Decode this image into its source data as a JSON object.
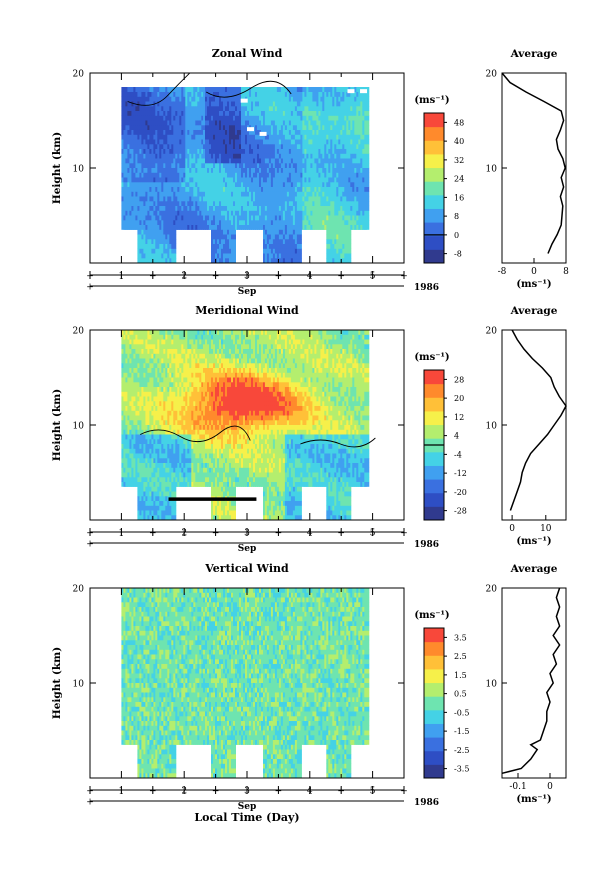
{
  "figure": {
    "colorbar_unit": "(ms⁻¹)",
    "average_title": "Average",
    "xaxis_month": "Sep",
    "xaxis_year": "1986",
    "xaxis_title": "Local Time (Day)"
  },
  "chart_data": [
    {
      "type": "heatmap",
      "title": "Zonal Wind",
      "ylabel": "Height (km)",
      "xlabel": "Local Time (Day)",
      "xlim": [
        0.5,
        5.5
      ],
      "ylim": [
        0,
        20
      ],
      "x_ticks": [
        "1",
        "2",
        "3",
        "4",
        "5"
      ],
      "y_ticks": [
        10,
        20
      ],
      "colorbar": {
        "unit": "(ms⁻¹)",
        "levels": [
          "-8",
          "0",
          "8",
          "16",
          "24",
          "32",
          "40",
          "48"
        ],
        "min": -12,
        "max": 52,
        "colors": [
          "#303a8e",
          "#2e4ec4",
          "#3a70e0",
          "#40a0f0",
          "#44d2e6",
          "#6ee4b0",
          "#b4ee6e",
          "#f6f04a",
          "#ffc038",
          "#ff8a2c",
          "#f8483a"
        ]
      },
      "field_description": "mostly 0 to 16 ms-1, negative zones marked by black zero contour",
      "average_profile": {
        "xlim": [
          -8,
          8
        ],
        "x_ticks": [
          -8,
          0,
          8
        ],
        "xlabel": "(ms⁻¹)",
        "height_km": [
          1,
          2,
          3,
          4,
          5,
          6,
          7,
          8,
          9,
          10,
          11,
          12,
          13,
          14,
          15,
          16,
          17,
          18,
          19,
          20
        ],
        "values": [
          3.5,
          4.5,
          5.8,
          6.8,
          7.0,
          7.2,
          6.6,
          7.4,
          6.8,
          7.8,
          7.2,
          6.0,
          5.6,
          6.6,
          7.4,
          6.8,
          2.5,
          -2.0,
          -6.0,
          -8.0
        ]
      }
    },
    {
      "type": "heatmap",
      "title": "Meridional Wind",
      "ylabel": "Height (km)",
      "xlabel": "Local Time (Day)",
      "xlim": [
        0.5,
        5.5
      ],
      "ylim": [
        0,
        20
      ],
      "x_ticks": [
        "1",
        "2",
        "3",
        "4",
        "5"
      ],
      "y_ticks": [
        10,
        20
      ],
      "colorbar": {
        "unit": "(ms⁻¹)",
        "levels": [
          "-28",
          "-20",
          "-12",
          "-4",
          "4",
          "12",
          "20",
          "28"
        ],
        "min": -32,
        "max": 32,
        "colors": [
          "#303a8e",
          "#2e4ec4",
          "#3a70e0",
          "#40a0f0",
          "#44d2e6",
          "#6ee4b0",
          "#b4ee6e",
          "#f6f04a",
          "#ffc038",
          "#ff8a2c",
          "#f8483a"
        ]
      },
      "field_description": "strong positive (red) core near 10-14 km on days 2-4",
      "average_profile": {
        "xlim": [
          -3,
          16
        ],
        "x_ticks": [
          0,
          10
        ],
        "xlabel": "(ms⁻¹)",
        "height_km": [
          1,
          2,
          3,
          4,
          5,
          6,
          7,
          8,
          9,
          10,
          11,
          12,
          13,
          14,
          15,
          16,
          17,
          18,
          19,
          20
        ],
        "values": [
          -0.5,
          0.5,
          1.5,
          2.5,
          3.0,
          4.0,
          5.5,
          8.0,
          10.5,
          12.5,
          14.5,
          16.0,
          14.0,
          12.5,
          11.5,
          9.0,
          6.0,
          3.5,
          1.5,
          0.0
        ]
      }
    },
    {
      "type": "heatmap",
      "title": "Vertical Wind",
      "ylabel": "Height (km)",
      "xlabel": "Local Time (Day)",
      "xlim": [
        0.5,
        5.5
      ],
      "ylim": [
        0,
        20
      ],
      "x_ticks": [
        "1",
        "2",
        "3",
        "4",
        "5"
      ],
      "y_ticks": [
        10,
        20
      ],
      "colorbar": {
        "unit": "(ms⁻¹)",
        "levels": [
          "-3.5",
          "-2.5",
          "-1.5",
          "-0.5",
          "0.5",
          "1.5",
          "2.5",
          "3.5"
        ],
        "min": -4.0,
        "max": 4.0,
        "colors": [
          "#303a8e",
          "#2e4ec4",
          "#3a70e0",
          "#40a0f0",
          "#44d2e6",
          "#6ee4b0",
          "#b4ee6e",
          "#f6f04a",
          "#ffc038",
          "#ff8a2c",
          "#f8483a"
        ]
      },
      "field_description": "nearly uniform, -0.5 to 0.5 ms-1",
      "average_profile": {
        "xlim": [
          -0.15,
          0.05
        ],
        "x_ticks": [
          -0.1,
          0.0
        ],
        "xlabel": "(ms⁻¹)",
        "height_km": [
          0.5,
          1,
          2,
          3,
          3.5,
          4,
          5,
          6,
          7,
          8,
          9,
          10,
          11,
          12,
          13,
          14,
          15,
          16,
          17,
          18,
          19,
          20
        ],
        "values": [
          -0.15,
          -0.09,
          -0.06,
          -0.04,
          -0.06,
          -0.03,
          -0.02,
          -0.01,
          -0.01,
          0.0,
          -0.01,
          0.01,
          0.0,
          0.02,
          0.01,
          0.03,
          0.01,
          0.03,
          0.02,
          0.03,
          0.02,
          0.03
        ]
      }
    }
  ]
}
